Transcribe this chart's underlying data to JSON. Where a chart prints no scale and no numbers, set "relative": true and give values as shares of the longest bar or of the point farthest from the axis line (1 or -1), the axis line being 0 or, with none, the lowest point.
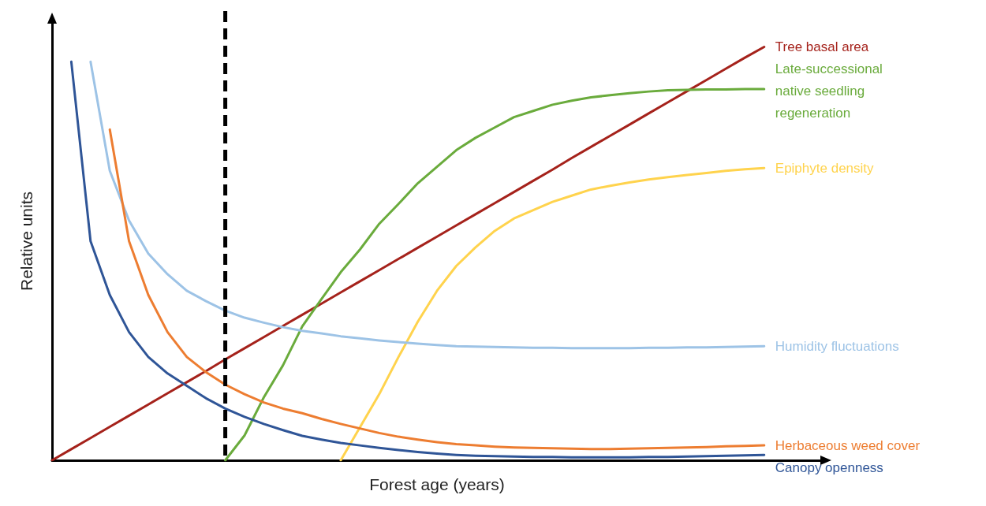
{
  "chart_data": {
    "type": "line",
    "relative": true,
    "xlabel": "Forest age (years)",
    "ylabel": "Relative units",
    "tick_labels": false,
    "grid": false,
    "legend": false,
    "marker": "none",
    "line_style": "solid",
    "categories": [
      null,
      null,
      null,
      null,
      null,
      null,
      null,
      null,
      null,
      null,
      null,
      null,
      null,
      null,
      null,
      null,
      null,
      null,
      null,
      null,
      null,
      null,
      null,
      null,
      null,
      null,
      null,
      null,
      null,
      null,
      null,
      null,
      null,
      null,
      null,
      null,
      null,
      null,
      null,
      null,
      null
    ],
    "series": [
      {
        "name": "Tree basal area",
        "color": "#a5221b",
        "values": [
          0,
          0.027,
          0.054,
          0.081,
          0.108,
          0.135,
          0.162,
          0.189,
          0.216,
          0.244,
          0.271,
          0.298,
          0.325,
          0.352,
          0.379,
          0.406,
          0.433,
          0.46,
          0.487,
          0.514,
          0.541,
          0.568,
          0.595,
          0.622,
          0.649,
          0.676,
          0.703,
          0.731,
          0.758,
          0.785,
          0.812,
          0.839,
          0.866,
          0.893,
          0.92,
          0.947,
          0.974,
          1,
          null,
          null,
          null
        ]
      },
      {
        "name": "Late-successional native seedling regeneration",
        "color": "#6aab3c",
        "values": [
          null,
          null,
          null,
          null,
          null,
          null,
          null,
          null,
          null,
          0,
          0.06,
          0.152,
          0.23,
          0.324,
          0.39,
          0.455,
          0.51,
          0.572,
          0.62,
          0.67,
          0.71,
          0.75,
          0.78,
          0.805,
          0.83,
          0.845,
          0.86,
          0.87,
          0.878,
          0.883,
          0.888,
          0.892,
          0.895,
          0.896,
          0.897,
          0.897,
          0.898,
          0.898,
          null,
          null,
          null
        ]
      },
      {
        "name": "Epiphyte density",
        "color": "#ffd34d",
        "values": [
          null,
          null,
          null,
          null,
          null,
          null,
          null,
          null,
          null,
          null,
          null,
          null,
          null,
          null,
          null,
          0,
          0.08,
          0.16,
          0.25,
          0.335,
          0.41,
          0.47,
          0.515,
          0.555,
          0.585,
          0.605,
          0.625,
          0.64,
          0.655,
          0.664,
          0.672,
          0.679,
          0.685,
          0.69,
          0.695,
          0.7,
          0.704,
          0.707,
          null,
          null,
          null
        ]
      },
      {
        "name": "Humidity fluctuations",
        "color": "#9dc3e6",
        "values": [
          null,
          null,
          0.964,
          0.7,
          0.58,
          0.5,
          0.45,
          0.41,
          0.385,
          0.362,
          0.345,
          0.333,
          0.322,
          0.313,
          0.307,
          0.3,
          0.295,
          0.29,
          0.286,
          0.282,
          0.279,
          0.276,
          0.275,
          0.274,
          0.273,
          0.272,
          0.272,
          0.271,
          0.271,
          0.271,
          0.271,
          0.272,
          0.272,
          0.273,
          0.273,
          0.274,
          0.275,
          0.276,
          null,
          null,
          null
        ]
      },
      {
        "name": "Herbaceous weed cover",
        "color": "#ed7d31",
        "values": [
          null,
          null,
          null,
          0.8,
          0.53,
          0.4,
          0.31,
          0.25,
          0.213,
          0.183,
          0.16,
          0.14,
          0.125,
          0.114,
          0.1,
          0.088,
          0.077,
          0.066,
          0.057,
          0.05,
          0.044,
          0.039,
          0.036,
          0.033,
          0.031,
          0.03,
          0.029,
          0.028,
          0.027,
          0.027,
          0.028,
          0.029,
          0.03,
          0.031,
          0.032,
          0.034,
          0.035,
          0.036,
          null,
          null,
          null
        ]
      },
      {
        "name": "Canopy openness",
        "color": "#2f5597",
        "values": [
          null,
          0.964,
          0.53,
          0.4,
          0.31,
          0.25,
          0.21,
          0.18,
          0.15,
          0.125,
          0.105,
          0.088,
          0.073,
          0.059,
          0.05,
          0.042,
          0.036,
          0.03,
          0.025,
          0.02,
          0.016,
          0.013,
          0.011,
          0.01,
          0.009,
          0.008,
          0.008,
          0.007,
          0.007,
          0.007,
          0.007,
          0.008,
          0.008,
          0.009,
          0.01,
          0.011,
          0.012,
          0.013,
          null,
          null,
          null
        ]
      }
    ]
  }
}
